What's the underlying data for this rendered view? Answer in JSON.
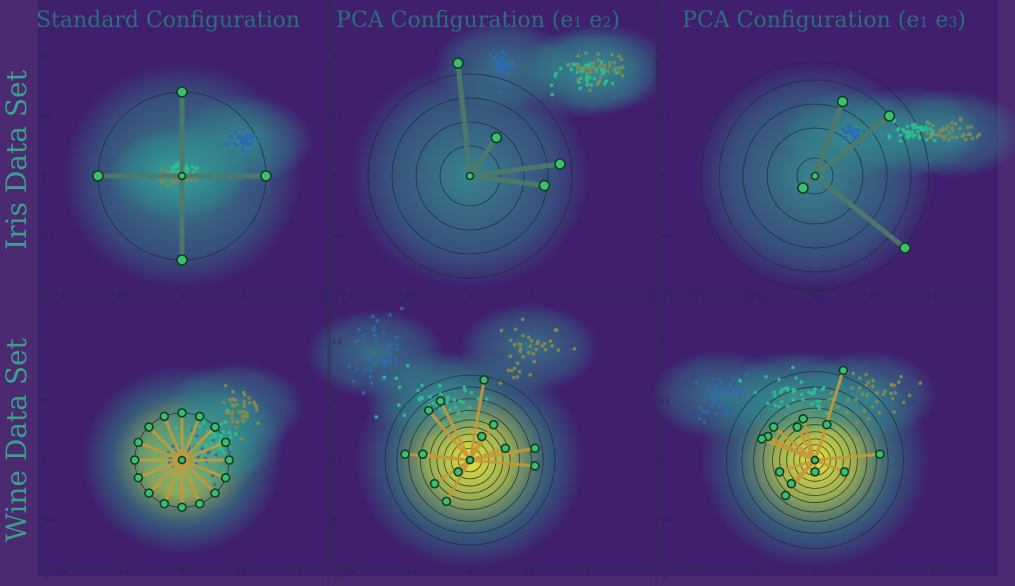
{
  "header": {
    "col_titles": [
      {
        "text": "Standard Configuration",
        "e_a": "",
        "e_b": ""
      },
      {
        "text": "PCA Configuration",
        "e_a": "1",
        "e_b": "2"
      },
      {
        "text": "PCA Configuration",
        "e_a": "1",
        "e_b": "3"
      }
    ],
    "row_titles": [
      "Iris Data Set",
      "Wine Data Set"
    ]
  },
  "colors": {
    "background": "#4b2a72",
    "heat_low": "#3f1f6e",
    "heat_mid": "#2a9b8c",
    "heat_high": "#f5ee3a",
    "spoke_iris": "#4f7a6a",
    "spoke_wine": "#c49a3a",
    "node_fill": "#3bbf6a"
  },
  "chart_data": [
    {
      "type": "scatter",
      "panel": "iris-standard",
      "xlim": [
        -1,
        1
      ],
      "ylim": [
        -1,
        1
      ],
      "xticks": [
        "-1",
        "-0.5",
        "0",
        "0.5",
        "1"
      ],
      "yticks": [
        "1",
        "0.5",
        "0",
        "-0.5",
        "-1"
      ],
      "rings": [
        0.7
      ],
      "anchors": [
        [
          0,
          0.7
        ],
        [
          -0.7,
          0
        ],
        [
          0.7,
          0
        ],
        [
          0,
          -0.7
        ]
      ],
      "clusters": [
        {
          "cx": 0.52,
          "cy": 0.3,
          "sx": 0.06,
          "sy": 0.04,
          "n": 40,
          "color": "#2b6cb0"
        },
        {
          "cx": 0.0,
          "cy": 0.05,
          "sx": 0.05,
          "sy": 0.03,
          "n": 40,
          "color": "#2fbf8f"
        },
        {
          "cx": -0.05,
          "cy": 0.0,
          "sx": 0.06,
          "sy": 0.03,
          "n": 40,
          "color": "#7c8b5a"
        }
      ]
    },
    {
      "type": "scatter",
      "panel": "iris-pca12",
      "xlim": [
        -1,
        1
      ],
      "ylim": [
        -1,
        1
      ],
      "xticks": [
        "-1",
        "-0.5",
        "0",
        "0.5",
        "1"
      ],
      "yticks": [
        "1",
        "0.5",
        "0",
        "-0.5",
        "-1"
      ],
      "rings": [
        0.25,
        0.45,
        0.65,
        0.85
      ],
      "anchors": [
        [
          -0.1,
          0.94
        ],
        [
          0.22,
          0.32
        ],
        [
          0.75,
          0.1
        ],
        [
          0.62,
          -0.08
        ]
      ],
      "clusters": [
        {
          "cx": 0.28,
          "cy": 0.92,
          "sx": 0.05,
          "sy": 0.07,
          "n": 40,
          "color": "#2b6cb0"
        },
        {
          "cx": 0.95,
          "cy": 0.85,
          "sx": 0.14,
          "sy": 0.06,
          "n": 45,
          "color": "#2fbf8f"
        },
        {
          "cx": 1.1,
          "cy": 0.9,
          "sx": 0.12,
          "sy": 0.06,
          "n": 40,
          "color": "#7c8b5a"
        }
      ]
    },
    {
      "type": "scatter",
      "panel": "iris-pca13",
      "xlim": [
        -1,
        1
      ],
      "ylim": [
        -1,
        1
      ],
      "xticks": [
        "-1",
        "-0.5",
        "0",
        "0.5",
        "1"
      ],
      "yticks": [
        "1",
        "0.5",
        "0",
        "-0.5",
        "-1"
      ],
      "rings": [
        0.15,
        0.4,
        0.6,
        0.8,
        0.95
      ],
      "anchors": [
        [
          0.23,
          0.62
        ],
        [
          0.62,
          0.5
        ],
        [
          -0.1,
          -0.1
        ],
        [
          0.75,
          -0.6
        ]
      ],
      "clusters": [
        {
          "cx": 0.3,
          "cy": 0.35,
          "sx": 0.04,
          "sy": 0.04,
          "n": 40,
          "color": "#2b6cb0"
        },
        {
          "cx": 0.8,
          "cy": 0.37,
          "sx": 0.12,
          "sy": 0.04,
          "n": 45,
          "color": "#2fbf8f"
        },
        {
          "cx": 1.15,
          "cy": 0.35,
          "sx": 0.12,
          "sy": 0.05,
          "n": 40,
          "color": "#7c8b5a"
        }
      ]
    },
    {
      "type": "scatter",
      "panel": "wine-standard",
      "xlim": [
        -1,
        1
      ],
      "ylim": [
        -1,
        1
      ],
      "xticks": [
        "-1",
        "-0.5",
        "0",
        "0.5",
        "1"
      ],
      "yticks": [
        "1",
        "0.5",
        "0",
        "-0.5",
        "-1"
      ],
      "rings": [
        0.4
      ],
      "anchors": [
        [
          0.0,
          0.4
        ],
        [
          0.15,
          0.37
        ],
        [
          0.28,
          0.28
        ],
        [
          0.37,
          0.15
        ],
        [
          0.4,
          0.0
        ],
        [
          0.37,
          -0.15
        ],
        [
          0.28,
          -0.28
        ],
        [
          0.15,
          -0.37
        ],
        [
          0.0,
          -0.4
        ],
        [
          -0.15,
          -0.37
        ],
        [
          -0.28,
          -0.28
        ],
        [
          -0.37,
          -0.15
        ],
        [
          -0.4,
          0.0
        ],
        [
          -0.37,
          0.15
        ],
        [
          -0.28,
          0.28
        ],
        [
          -0.15,
          0.37
        ]
      ],
      "clusters": [
        {
          "cx": 0.45,
          "cy": 0.45,
          "sx": 0.08,
          "sy": 0.08,
          "n": 45,
          "color": "#8a8a4a"
        },
        {
          "cx": 0.3,
          "cy": 0.2,
          "sx": 0.1,
          "sy": 0.1,
          "n": 40,
          "color": "#2fbf8f"
        },
        {
          "cx": 0.1,
          "cy": 0.05,
          "sx": 0.12,
          "sy": 0.08,
          "n": 35,
          "color": "#2b6cb0"
        }
      ]
    },
    {
      "type": "scatter",
      "panel": "wine-pca12",
      "xlim": [
        -1,
        1
      ],
      "ylim": [
        -1,
        1
      ],
      "xticks": [
        "-1",
        "-0.5",
        "0",
        "0.5",
        "1"
      ],
      "yticks": [
        "1.5",
        "1",
        "0.5",
        "0",
        "-0.5"
      ],
      "rings": [
        0.1,
        0.16,
        0.22,
        0.28,
        0.34,
        0.42,
        0.52,
        0.62,
        0.72
      ],
      "anchors": [
        [
          0.12,
          0.68
        ],
        [
          -0.25,
          0.5
        ],
        [
          -0.35,
          0.42
        ],
        [
          0.2,
          0.3
        ],
        [
          0.55,
          0.1
        ],
        [
          -0.4,
          0.05
        ],
        [
          -0.3,
          -0.2
        ],
        [
          -0.2,
          -0.35
        ],
        [
          0.3,
          0.1
        ],
        [
          0.55,
          -0.05
        ],
        [
          -0.55,
          0.05
        ],
        [
          0.1,
          0.2
        ],
        [
          -0.1,
          -0.1
        ]
      ],
      "clusters": [
        {
          "cx": -0.8,
          "cy": 0.9,
          "sx": 0.12,
          "sy": 0.15,
          "n": 45,
          "color": "#2b6cb0"
        },
        {
          "cx": -0.3,
          "cy": 0.55,
          "sx": 0.2,
          "sy": 0.12,
          "n": 40,
          "color": "#2fbf8f"
        },
        {
          "cx": 0.5,
          "cy": 0.95,
          "sx": 0.12,
          "sy": 0.15,
          "n": 40,
          "color": "#8a8a4a"
        }
      ]
    },
    {
      "type": "scatter",
      "panel": "wine-pca13",
      "xlim": [
        -1,
        1
      ],
      "ylim": [
        -1,
        1
      ],
      "xticks": [
        "-1",
        "-0.5",
        "0",
        "0.5",
        "1"
      ],
      "yticks": [
        "1",
        "0.5",
        "0",
        "-0.5",
        "-1"
      ],
      "rings": [
        0.08,
        0.13,
        0.18,
        0.24,
        0.3,
        0.36,
        0.44,
        0.52,
        0.62,
        0.75
      ],
      "anchors": [
        [
          0.24,
          0.76
        ],
        [
          -0.1,
          0.35
        ],
        [
          -0.35,
          0.28
        ],
        [
          -0.4,
          0.2
        ],
        [
          0.55,
          0.05
        ],
        [
          -0.3,
          -0.1
        ],
        [
          -0.2,
          -0.2
        ],
        [
          -0.45,
          0.18
        ],
        [
          0.0,
          -0.1
        ],
        [
          0.25,
          -0.1
        ],
        [
          -0.25,
          -0.3
        ],
        [
          0.1,
          0.3
        ],
        [
          -0.15,
          0.28
        ]
      ],
      "clusters": [
        {
          "cx": -0.8,
          "cy": 0.55,
          "sx": 0.12,
          "sy": 0.1,
          "n": 45,
          "color": "#2b6cb0"
        },
        {
          "cx": -0.2,
          "cy": 0.55,
          "sx": 0.25,
          "sy": 0.08,
          "n": 40,
          "color": "#2fbf8f"
        },
        {
          "cx": 0.45,
          "cy": 0.55,
          "sx": 0.15,
          "sy": 0.12,
          "n": 40,
          "color": "#8a8a4a"
        }
      ]
    }
  ]
}
